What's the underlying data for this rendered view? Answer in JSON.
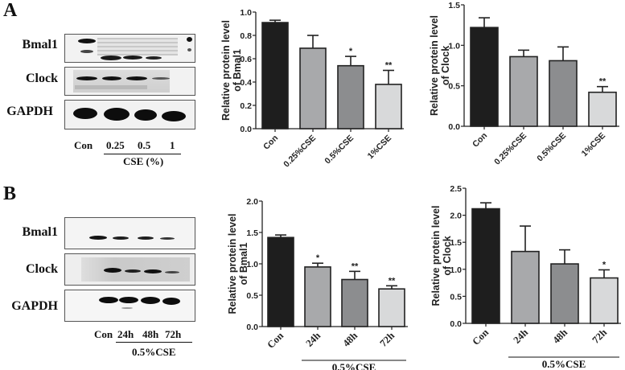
{
  "panels": {
    "A": {
      "letter": "A",
      "blot": {
        "rows": [
          "Bmal1",
          "Clock",
          "GAPDH"
        ],
        "lanes": [
          "Con",
          "0.25",
          "0.5",
          "1"
        ],
        "group_label": "CSE (%)"
      }
    },
    "B": {
      "letter": "B",
      "blot": {
        "rows": [
          "Bmal1",
          "Clock",
          "GAPDH"
        ],
        "lanes": [
          "Con",
          "24h",
          "48h",
          "72h"
        ],
        "group_label": "0.5%CSE"
      }
    }
  },
  "colors": {
    "bar_con": "#1e1e1e",
    "bar_2": "#a8a9ab",
    "bar_3": "#8c8d8f",
    "bar_4": "#d8d9da",
    "axis": "#222222"
  },
  "chart_data": [
    {
      "id": "A-Bmal1",
      "type": "bar",
      "title": "",
      "ylabel": "Relative protein level of Bmal1",
      "ylabel_lines": [
        "Relative protein level",
        "of Bmal1"
      ],
      "xlabel": "",
      "categories": [
        "Con",
        "0.25%CSE",
        "0.5%CSE",
        "1%CSE"
      ],
      "values": [
        0.91,
        0.69,
        0.54,
        0.38
      ],
      "error_upper": [
        0.93,
        0.8,
        0.62,
        0.5
      ],
      "significance": [
        "",
        "",
        "*",
        "**"
      ],
      "ylim": [
        0,
        1.0
      ],
      "yticks": [
        "0.0",
        "0.2",
        "0.4",
        "0.6",
        "0.8",
        "1.0"
      ],
      "ytick_values": [
        0,
        0.2,
        0.4,
        0.6,
        0.8,
        1.0
      ],
      "xtick_rotation": -45,
      "group_label": "",
      "grid": false,
      "legend": "none"
    },
    {
      "id": "A-Clock",
      "type": "bar",
      "title": "",
      "ylabel": "Relative protein level of Clock",
      "ylabel_lines": [
        "Relative protein level",
        "of Clock"
      ],
      "xlabel": "",
      "categories": [
        "Con",
        "0.25%CSE",
        "0.5%CSE",
        "1%CSE"
      ],
      "values": [
        1.22,
        0.86,
        0.81,
        0.42
      ],
      "error_upper": [
        1.34,
        0.94,
        0.98,
        0.49
      ],
      "significance": [
        "",
        "",
        "",
        "**"
      ],
      "ylim": [
        0,
        1.5
      ],
      "yticks": [
        "0.0",
        "0.5",
        "1.0",
        "1.5"
      ],
      "ytick_values": [
        0,
        0.5,
        1.0,
        1.5
      ],
      "xtick_rotation": -45,
      "group_label": "",
      "grid": false,
      "legend": "none"
    },
    {
      "id": "B-Bmal1",
      "type": "bar",
      "title": "",
      "ylabel": "Relative protein level of Bmal1",
      "ylabel_lines": [
        "Relative protein level",
        "of Bmal1"
      ],
      "xlabel": "0.5%CSE",
      "categories": [
        "Con",
        "24h",
        "48h",
        "72h"
      ],
      "values": [
        1.42,
        0.95,
        0.75,
        0.6
      ],
      "error_upper": [
        1.46,
        1.01,
        0.88,
        0.65
      ],
      "significance": [
        "",
        "*",
        "**",
        "**"
      ],
      "ylim": [
        0,
        2.0
      ],
      "yticks": [
        "0.0",
        "0.5",
        "1.0",
        "1.5",
        "2.0"
      ],
      "ytick_values": [
        0,
        0.5,
        1.0,
        1.5,
        2.0
      ],
      "xtick_rotation": -45,
      "group_label": "0.5%CSE",
      "grid": false,
      "legend": "none"
    },
    {
      "id": "B-Clock",
      "type": "bar",
      "title": "",
      "ylabel": "Relative protein level of Clock",
      "ylabel_lines": [
        "Relative protein level",
        "of Clock"
      ],
      "xlabel": "0.5%CSE",
      "categories": [
        "Con",
        "24h",
        "48h",
        "72h"
      ],
      "values": [
        2.12,
        1.33,
        1.1,
        0.84
      ],
      "error_upper": [
        2.23,
        1.8,
        1.36,
        0.99
      ],
      "significance": [
        "",
        "",
        "",
        "*"
      ],
      "ylim": [
        0,
        2.5
      ],
      "yticks": [
        "0.0",
        "0.5",
        "1.0",
        "1.5",
        "2.0",
        "2.5"
      ],
      "ytick_values": [
        0,
        0.5,
        1.0,
        1.5,
        2.0,
        2.5
      ],
      "xtick_rotation": -45,
      "group_label": "0.5%CSE",
      "grid": false,
      "legend": "none"
    }
  ]
}
